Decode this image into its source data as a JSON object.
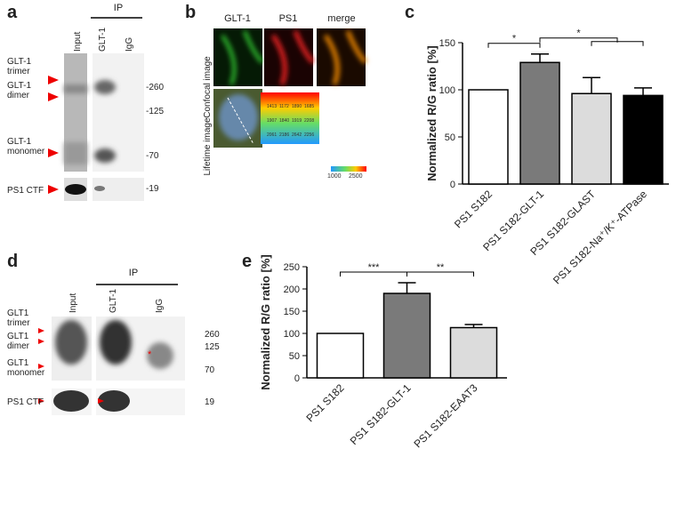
{
  "panel_a": {
    "label": "a",
    "ip": "IP",
    "lanes": [
      "Input",
      "GLT-1",
      "IgG"
    ],
    "bands": [
      "GLT-1\ntrimer",
      "GLT-1\ndimer",
      "GLT-1\nmonomer",
      "PS1 CTF"
    ],
    "markers": [
      "-260",
      "-125",
      "-70",
      "-19"
    ]
  },
  "panel_b": {
    "label": "b",
    "columns": [
      "GLT-1",
      "PS1",
      "merge"
    ],
    "rows": [
      "Confocal image",
      "Lifetime image"
    ],
    "lifetime_values": [
      1413,
      1172,
      1890,
      1685,
      1907,
      1840,
      1919,
      2208,
      2061,
      2186,
      2642,
      2256
    ],
    "scale": [
      "1000",
      "2500"
    ]
  },
  "panel_d": {
    "label": "d",
    "ip": "IP",
    "lanes": [
      "Input",
      "GLT-1",
      "IgG"
    ],
    "bands": [
      "GLT1\ntrimer",
      "GLT1\ndimer",
      "GLT1\nmonomer",
      "PS1 CTF"
    ],
    "markers": [
      "260",
      "125",
      "70",
      "19"
    ]
  },
  "chart_data": [
    {
      "type": "bar",
      "label": "c",
      "y_label": "Normalized R/G ratio [%]",
      "categories": [
        "PS1 S182",
        "PS1 S182-GLT-1",
        "PS1 S182-GLAST",
        "PS1 S182-Na⁺/K⁺-ATPase"
      ],
      "values": [
        100,
        129,
        96,
        94
      ],
      "errors": [
        0,
        9,
        17,
        8
      ],
      "colors": [
        "#ffffff",
        "#7a7a7a",
        "#dcdcdc",
        "#000000"
      ],
      "ylim": [
        0,
        150
      ],
      "yticks": [
        0,
        50,
        100,
        150
      ],
      "annotations": [
        "*",
        "*"
      ]
    },
    {
      "type": "bar",
      "label": "e",
      "y_label": "Normalized R/G ratio [%]",
      "categories": [
        "PS1 S182",
        "PS1 S182-GLT-1",
        "PS1 S182-EAAT3"
      ],
      "values": [
        100,
        190,
        113
      ],
      "errors": [
        0,
        24,
        7
      ],
      "colors": [
        "#ffffff",
        "#7a7a7a",
        "#dcdcdc"
      ],
      "ylim": [
        0,
        250
      ],
      "yticks": [
        0,
        50,
        100,
        150,
        200,
        250
      ],
      "annotations": [
        "***",
        "**"
      ]
    }
  ]
}
